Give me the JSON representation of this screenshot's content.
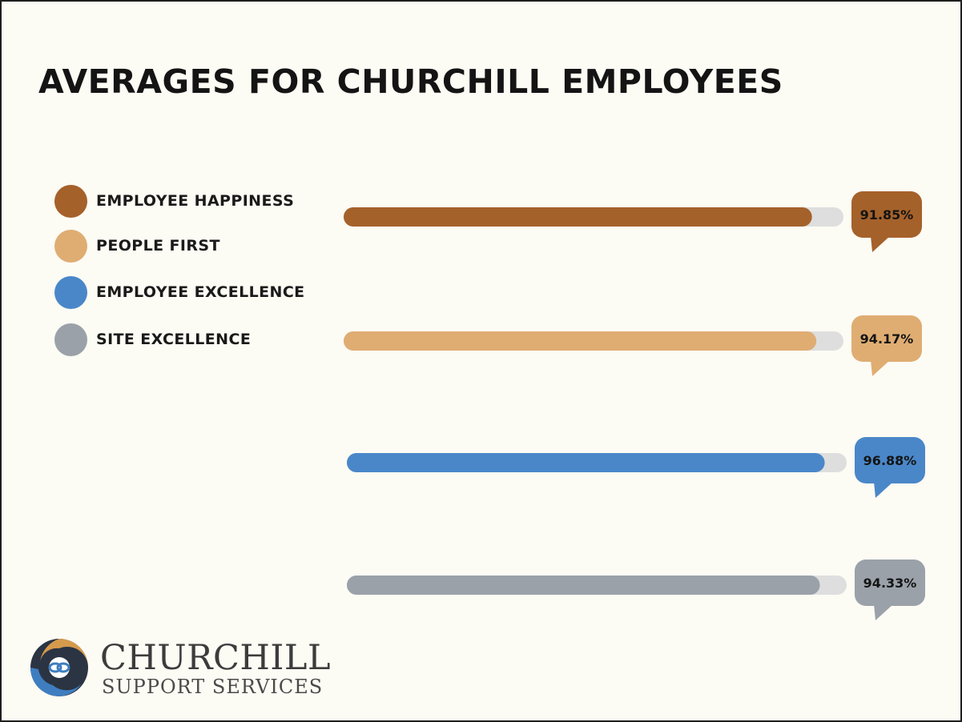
{
  "chart_data": {
    "type": "bar",
    "orientation": "horizontal",
    "title": "AVERAGES FOR CHURCHILL EMPLOYEES",
    "categories": [
      "EMPLOYEE HAPPINESS",
      "PEOPLE FIRST",
      "EMPLOYEE EXCELLENCE",
      "SITE EXCELLENCE"
    ],
    "values": [
      91.85,
      94.17,
      96.88,
      94.33
    ],
    "value_labels": [
      "91.85%",
      "94.17%",
      "96.88%",
      "94.33%"
    ],
    "xlim": [
      0,
      100
    ],
    "unit": "%",
    "colors": [
      "#a5612a",
      "#dfad72",
      "#4a87c9",
      "#9aa1a9"
    ],
    "track_color": "#dedede",
    "legend_position": "left",
    "grid": false
  },
  "logo": {
    "name": "CHURCHILL",
    "tagline": "SUPPORT SERVICES",
    "icon": "churchill-swirl-logo-icon"
  }
}
